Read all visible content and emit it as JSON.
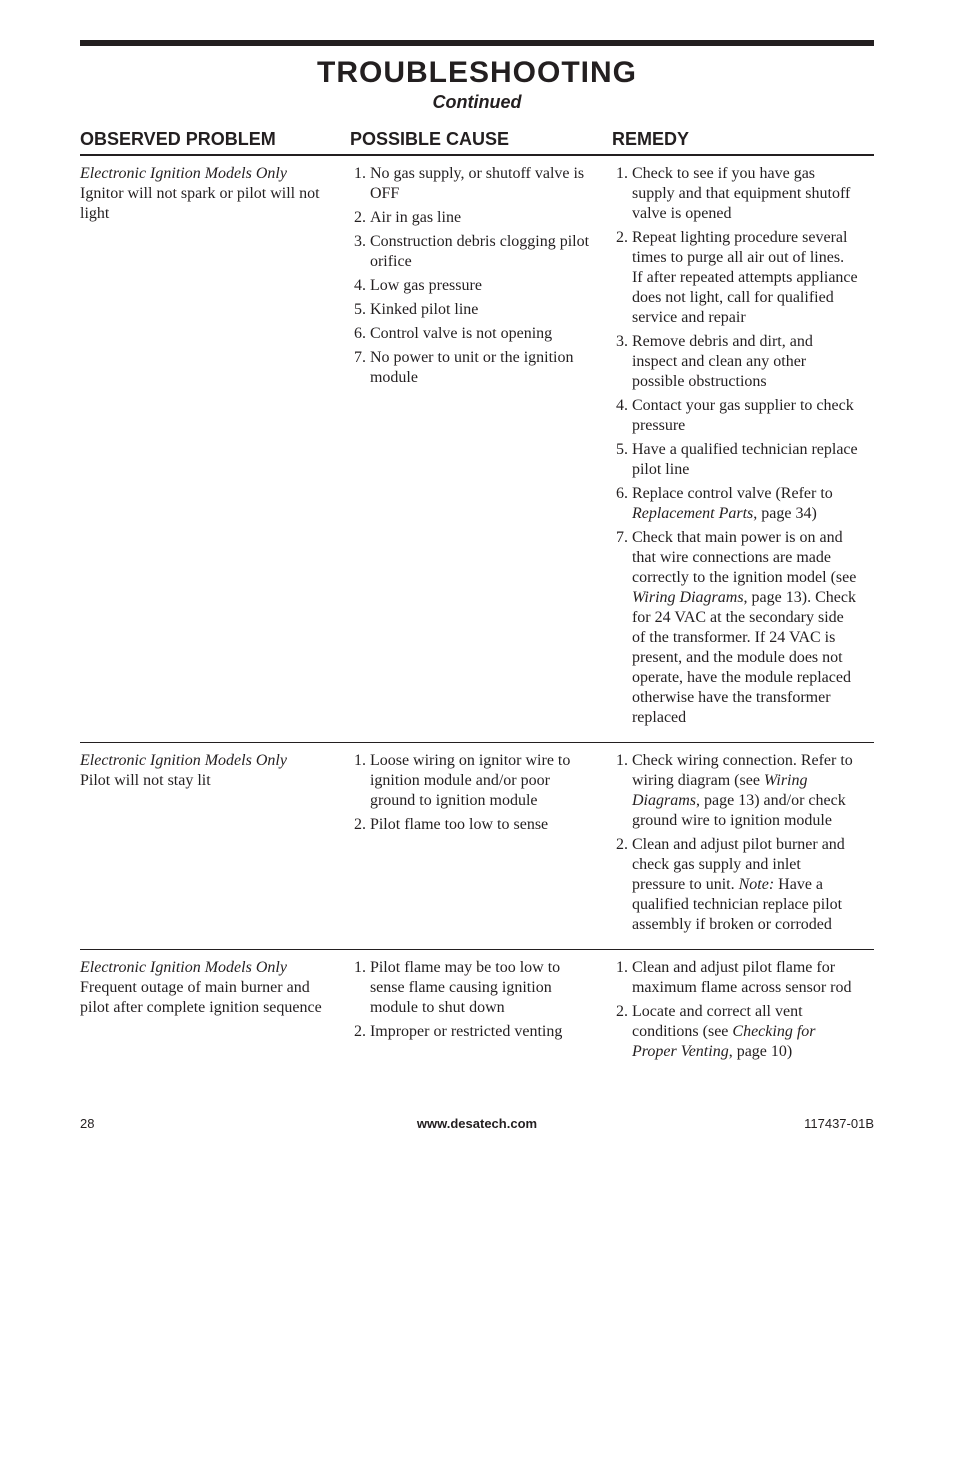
{
  "title": "TROUBLESHOOTING",
  "subtitle": "Continued",
  "headers": {
    "observed": "OBSERVED PROBLEM",
    "cause": "POSSIBLE CAUSE",
    "remedy": "REMEDY"
  },
  "rows": [
    {
      "observed_italic": "Electronic Ignition Models Only",
      "observed_rest": "Ignitor will not spark or pilot will not light",
      "causes": [
        "No gas supply, or shutoff valve is OFF",
        "Air in gas line",
        "Construction debris clogging pilot orifice",
        "Low gas pressure",
        "Kinked pilot line",
        "Control valve is not opening",
        "No power to unit or the ignition module"
      ],
      "remedies": [
        "Check to see if you have gas supply and that equipment shutoff valve is opened",
        "Repeat lighting procedure several times to purge all air out of lines. If after repeated attempts appliance does not light, call for qualified service and repair",
        "Remove debris and dirt, and inspect and clean any other possible obstructions",
        "Contact your gas supplier to check pressure",
        "Have a qualified technician replace pilot line",
        "Replace control valve (Refer to <span class=\"italic\">Replacement Parts</span>, page 34)",
        "Check that main power is on and that wire connections are made correctly to the ignition model (see <span class=\"italic\">Wiring Diagrams</span>, page 13). Check for 24 VAC at the secondary side of the transformer. If 24 VAC is present, and the module does not operate, have the module replaced otherwise have the transformer replaced"
      ]
    },
    {
      "observed_italic": "Electronic Ignition Models Only",
      "observed_rest": "Pilot will not stay lit",
      "causes": [
        "Loose wiring on ignitor wire to ignition module and/or poor ground to ignition module",
        "Pilot flame too low to sense"
      ],
      "remedies": [
        "Check wiring connection. Refer to wiring diagram (see <span class=\"italic\">Wiring Diagrams</span>, page 13) and/or check ground wire to ignition module",
        "Clean and adjust pilot burner and check gas supply and inlet pressure to unit. <span class=\"note-label\">Note:</span> Have a qualified technician replace pilot assembly if broken or corroded"
      ]
    },
    {
      "observed_italic": "Electronic Ignition Models Only",
      "observed_rest": "Frequent outage of main burner and pilot after complete ignition sequence",
      "causes": [
        "Pilot flame may be too low to sense flame causing ignition module to shut down",
        "Improper or restricted venting"
      ],
      "remedies": [
        "Clean and adjust pilot flame for maximum flame across sensor rod",
        "Locate and correct all vent conditions (see <span class=\"italic\">Checking for Proper Venting</span>, page 10)"
      ]
    }
  ],
  "footer": {
    "page_number": "28",
    "website": "www.desatech.com",
    "doc_id": "117437-01B"
  }
}
